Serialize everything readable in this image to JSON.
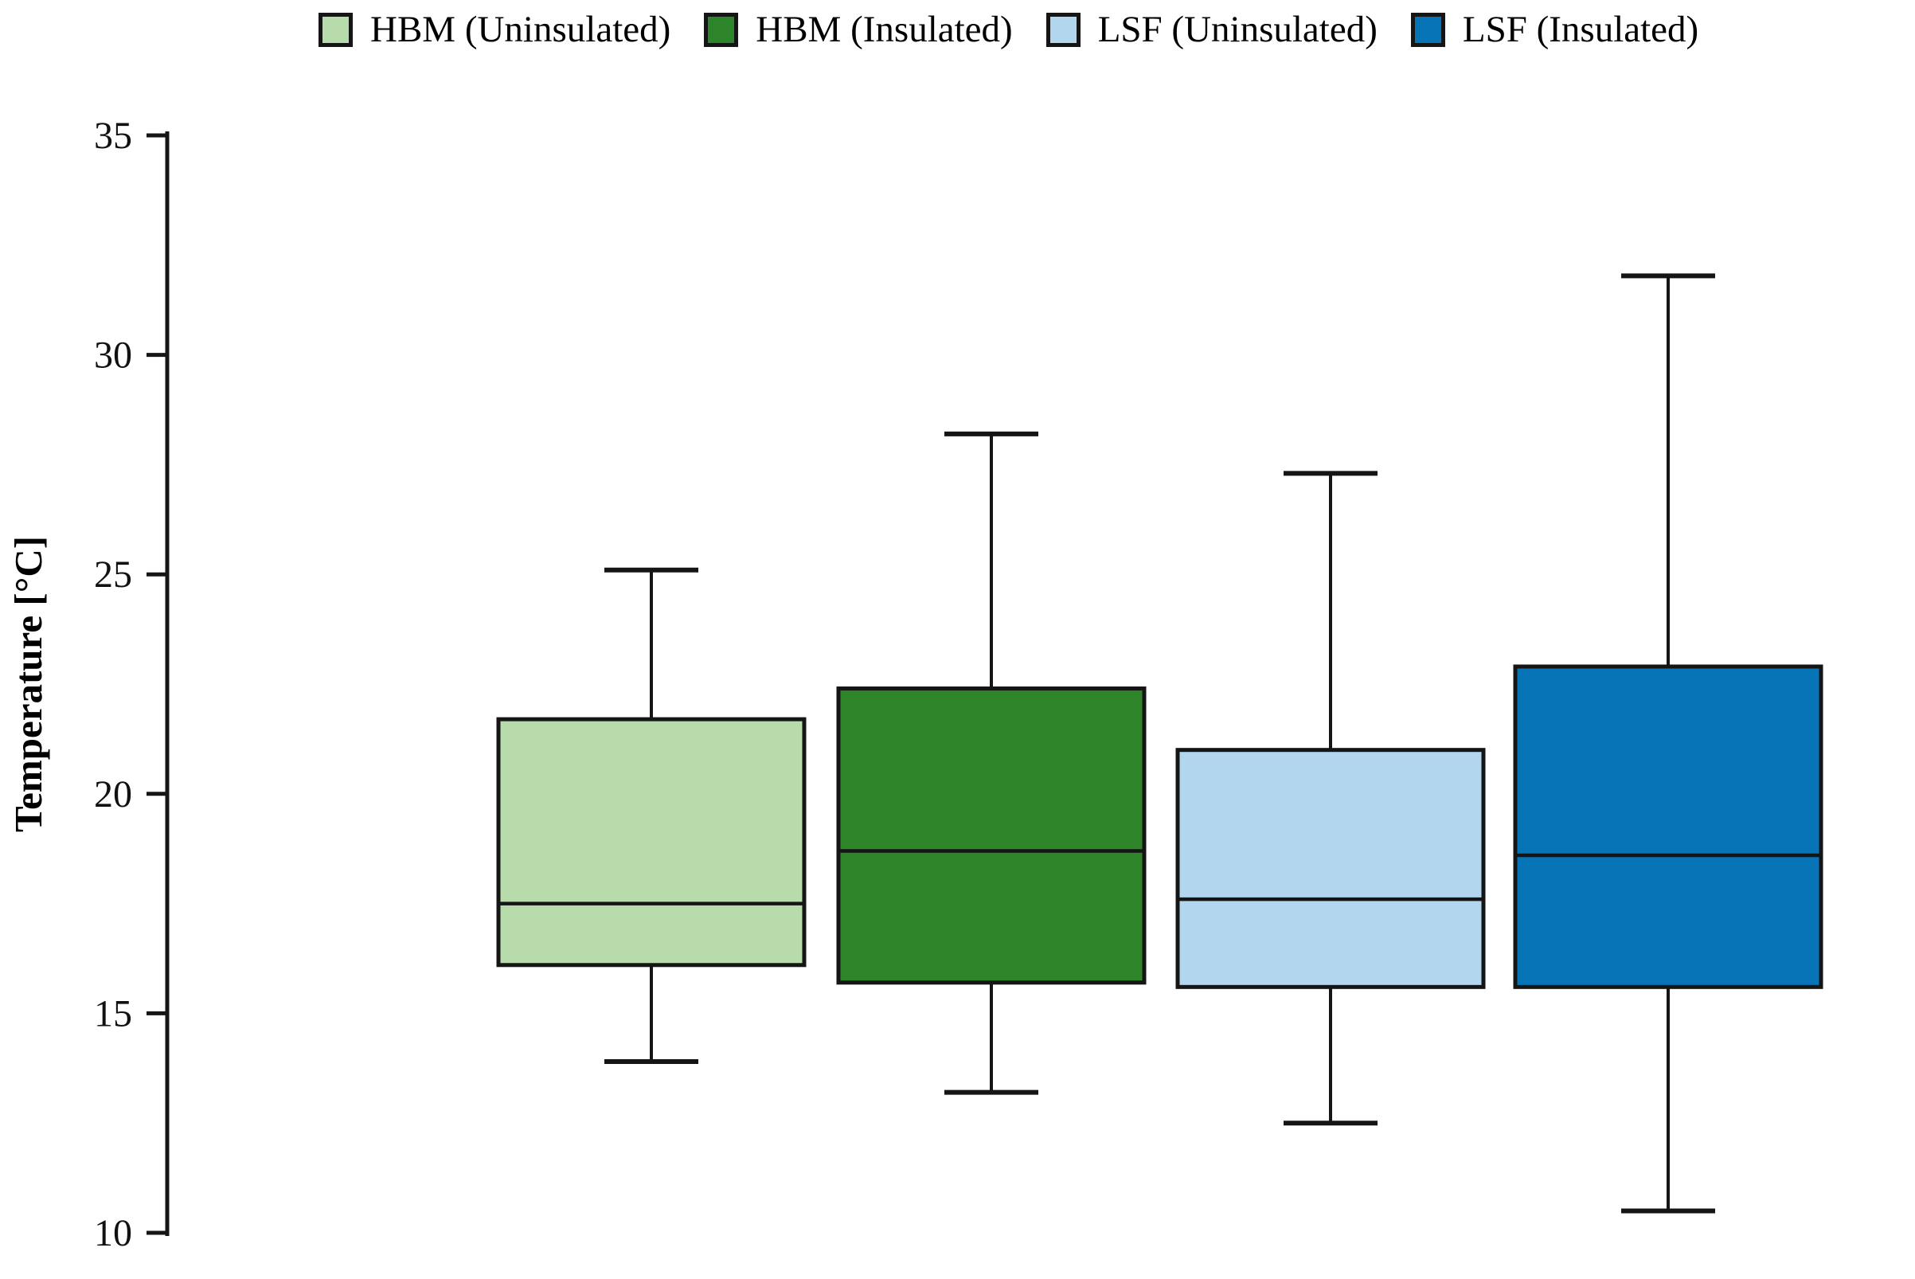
{
  "chart_data": {
    "type": "boxplot",
    "title": "",
    "xlabel": "",
    "ylabel": "Temperature [°C]",
    "ylim": [
      10,
      35
    ],
    "yticks": [
      35,
      30,
      25,
      20,
      15,
      10
    ],
    "grid": false,
    "legend_position": "top",
    "series": [
      {
        "name": "HBM (Uninsulated)",
        "color": "#b7dbab",
        "whisker_low": 13.9,
        "q1": 16.1,
        "median": 17.5,
        "q3": 21.7,
        "whisker_high": 25.1
      },
      {
        "name": "HBM (Insulated)",
        "color": "#2e8428",
        "whisker_low": 13.2,
        "q1": 15.7,
        "median": 18.7,
        "q3": 22.4,
        "whisker_high": 28.2
      },
      {
        "name": "LSF (Uninsulated)",
        "color": "#b1d6ee",
        "whisker_low": 12.5,
        "q1": 15.6,
        "median": 17.6,
        "q3": 21.0,
        "whisker_high": 27.3
      },
      {
        "name": "LSF (Insulated)",
        "color": "#0874b8",
        "whisker_low": 10.5,
        "q1": 15.6,
        "median": 18.6,
        "q3": 22.9,
        "whisker_high": 31.8
      }
    ]
  }
}
